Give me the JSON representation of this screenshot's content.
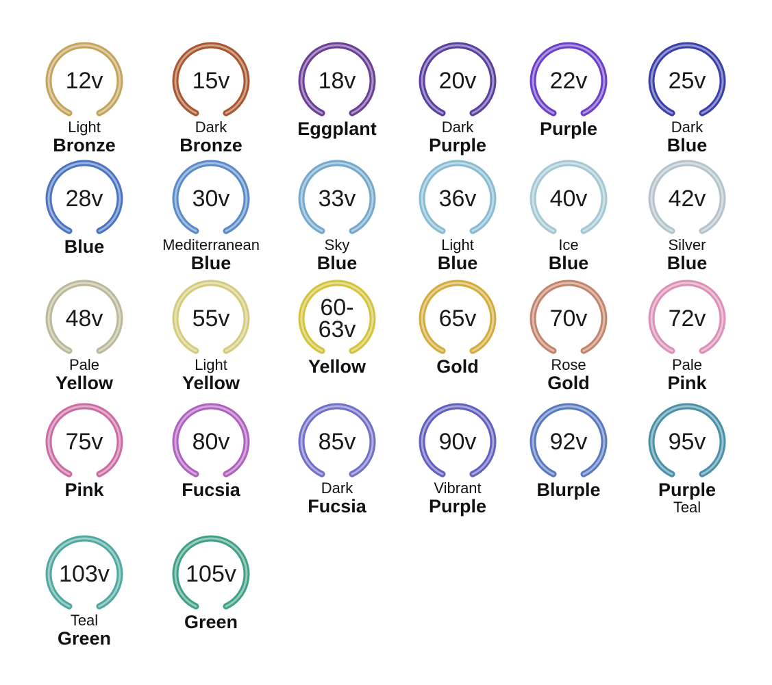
{
  "items": [
    {
      "voltage": "12v",
      "prefix": "Light",
      "name": "Bronze",
      "color": "#c4a45c"
    },
    {
      "voltage": "15v",
      "prefix": "Dark",
      "name": "Bronze",
      "color": "#a8562e"
    },
    {
      "voltage": "18v",
      "name": "Eggplant",
      "color": "#6a3d96"
    },
    {
      "voltage": "20v",
      "prefix": "Dark",
      "name": "Purple",
      "color": "#5a3fa0"
    },
    {
      "voltage": "22v",
      "name": "Purple",
      "color": "#6b3fc8"
    },
    {
      "voltage": "25v",
      "prefix": "Dark",
      "name": "Blue",
      "color": "#3a40a8"
    },
    {
      "voltage": "28v",
      "name": "Blue",
      "color": "#4a74c0"
    },
    {
      "voltage": "30v",
      "prefix": "Mediterranean",
      "name": "Blue",
      "color": "#5a8ac8"
    },
    {
      "voltage": "33v",
      "prefix": "Sky",
      "name": "Blue",
      "color": "#74a8cc"
    },
    {
      "voltage": "36v",
      "prefix": "Light",
      "name": "Blue",
      "color": "#88bcd4"
    },
    {
      "voltage": "40v",
      "prefix": "Ice",
      "name": "Blue",
      "color": "#a4c8d4"
    },
    {
      "voltage": "42v",
      "prefix": "Silver",
      "name": "Blue",
      "color": "#b4c4cc"
    },
    {
      "voltage": "48v",
      "prefix": "Pale",
      "name": "Yellow",
      "color": "#bcb898"
    },
    {
      "voltage": "55v",
      "prefix": "Light",
      "name": "Yellow",
      "color": "#d4cc7c"
    },
    {
      "voltage": "60-63v",
      "name": "Yellow",
      "color": "#d4c43c"
    },
    {
      "voltage": "65v",
      "name": "Gold",
      "color": "#d4ac3c"
    },
    {
      "voltage": "70v",
      "prefix": "Rose",
      "name": "Gold",
      "color": "#c4846c"
    },
    {
      "voltage": "72v",
      "prefix": "Pale",
      "name": "Pink",
      "color": "#dc90b8"
    },
    {
      "voltage": "75v",
      "name": "Pink",
      "color": "#cc6ca4"
    },
    {
      "voltage": "80v",
      "name": "Fucsia",
      "color": "#b060c0"
    },
    {
      "voltage": "85v",
      "prefix": "Dark",
      "name": "Fucsia",
      "color": "#7070c8"
    },
    {
      "voltage": "90v",
      "prefix": "Vibrant",
      "name": "Purple",
      "color": "#6060c0"
    },
    {
      "voltage": "92v",
      "name": "Blurple",
      "color": "#5878c0"
    },
    {
      "voltage": "95v",
      "name": "Purple",
      "suffix": "Teal",
      "color": "#4a90a8"
    },
    {
      "voltage": "103v",
      "prefix": "Teal",
      "name": "Green",
      "color": "#50a8a0"
    },
    {
      "voltage": "105v",
      "name": "Green",
      "color": "#40a088"
    }
  ]
}
